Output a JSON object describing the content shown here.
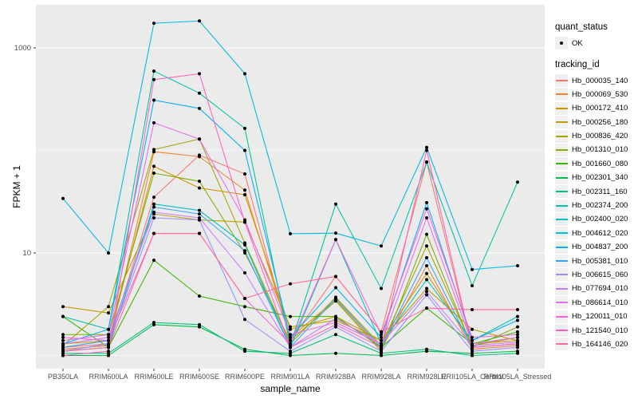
{
  "chart_data": {
    "type": "line",
    "title": "",
    "xlabel": "sample_name",
    "ylabel": "FPKM + 1",
    "y_scale": "log10",
    "ylim": [
      0.75,
      2600
    ],
    "grid": "on",
    "legend_position": "right",
    "point_color": "#000000",
    "categories": [
      "PB350LA",
      "RRIM600LA",
      "RRIM600LE",
      "RRIM600SE",
      "RRIM600PE",
      "RRIM901LA",
      "RRIM928BA",
      "RRIM928LA",
      "RRIM928LE",
      "RRII105LA_Control",
      "RRII105LA_Stressed"
    ],
    "y_ticks": [
      {
        "label": "1000",
        "value": 1000
      },
      {
        "label": "10",
        "value": 10
      }
    ],
    "minor_gridline_values": [
      100,
      1
    ],
    "series": [
      {
        "name": "Hb_000035_140",
        "color": "#F8766D",
        "values": [
          1.2,
          1.3,
          35,
          90,
          59,
          1.4,
          5.9,
          1.7,
          77,
          1.2,
          1.3
        ]
      },
      {
        "name": "Hb_000069_530",
        "color": "#EA8331",
        "values": [
          1.15,
          1.25,
          97,
          87,
          41,
          1.5,
          3.5,
          1.15,
          7.5,
          1.15,
          1.25
        ]
      },
      {
        "name": "Hb_000172_410",
        "color": "#D89000",
        "values": [
          1.3,
          1.4,
          70,
          43,
          37,
          1.8,
          2.4,
          1.4,
          6.3,
          1.3,
          1.4
        ]
      },
      {
        "name": "Hb_000256_180",
        "color": "#C09B00",
        "values": [
          3.0,
          2.6,
          24,
          21,
          20,
          1.9,
          2.2,
          1.4,
          4.5,
          1.8,
          1.4
        ]
      },
      {
        "name": "Hb_000836_420",
        "color": "#A3A500",
        "values": [
          1.25,
          3.0,
          102,
          129,
          12.5,
          1.3,
          3.7,
          1.25,
          11.7,
          1.25,
          1.5
        ]
      },
      {
        "name": "Hb_001310_010",
        "color": "#7CAE00",
        "values": [
          1.6,
          1.6,
          60,
          50,
          10,
          1.4,
          3.4,
          1.1,
          15.2,
          1.2,
          1.9
        ]
      },
      {
        "name": "Hb_001660_080",
        "color": "#39B600",
        "values": [
          2.4,
          1.2,
          8.5,
          3.8,
          3.0,
          2.4,
          2.4,
          1.2,
          2.9,
          1.3,
          1.7
        ]
      },
      {
        "name": "Hb_002301_340",
        "color": "#00BB4E",
        "values": [
          1.0,
          1.0,
          2.0,
          1.9,
          1.15,
          1.0,
          1.05,
          1.0,
          1.1,
          1.05,
          1.1
        ]
      },
      {
        "name": "Hb_002311_160",
        "color": "#00BF7D",
        "values": [
          1.05,
          1.05,
          2.1,
          2.0,
          1.1,
          1.05,
          1.6,
          1.05,
          1.15,
          1.0,
          1.05
        ]
      },
      {
        "name": "Hb_002374_200",
        "color": "#00C1A3",
        "values": [
          2.4,
          1.8,
          594,
          362,
          164,
          1.25,
          30,
          4.5,
          77,
          4.8,
          49
        ]
      },
      {
        "name": "Hb_002400_020",
        "color": "#00BFC4",
        "values": [
          1.1,
          1.2,
          30,
          26,
          12,
          1.2,
          13.5,
          1.3,
          5.5,
          1.4,
          2.4
        ]
      },
      {
        "name": "Hb_004612_020",
        "color": "#00BAE0",
        "values": [
          34,
          10,
          1740,
          1830,
          560,
          15.4,
          15.6,
          11.7,
          107,
          6.9,
          7.5
        ]
      },
      {
        "name": "Hb_004837_200",
        "color": "#00B0F6",
        "values": [
          1.3,
          1.8,
          309,
          257,
          100,
          1.5,
          4.6,
          1.5,
          31,
          1.4,
          2.2
        ]
      },
      {
        "name": "Hb_005381_010",
        "color": "#35A2FF",
        "values": [
          1.2,
          1.4,
          28,
          24,
          10.5,
          1.2,
          3.6,
          1.2,
          9.0,
          1.2,
          1.3
        ]
      },
      {
        "name": "Hb_006615_060",
        "color": "#9590FF",
        "values": [
          1.1,
          1.3,
          22,
          21,
          2.25,
          1.1,
          1.9,
          1.1,
          3.9,
          1.1,
          1.2
        ]
      },
      {
        "name": "Hb_077694_010",
        "color": "#C77CFF",
        "values": [
          1.3,
          1.5,
          25,
          22,
          6.4,
          1.2,
          2.3,
          1.3,
          4.2,
          1.25,
          1.35
        ]
      },
      {
        "name": "Hb_086614_010",
        "color": "#E76BF3",
        "values": [
          1.4,
          1.6,
          186,
          129,
          21,
          1.6,
          2.1,
          1.3,
          22,
          1.3,
          1.5
        ]
      },
      {
        "name": "Hb_120011_010",
        "color": "#FA62DB",
        "values": [
          1.5,
          1.4,
          15.5,
          15.5,
          3.6,
          1.3,
          13.5,
          1.6,
          27,
          1.5,
          1.6
        ]
      },
      {
        "name": "Hb_121540_010",
        "color": "#FF62BC",
        "values": [
          1.0,
          1.1,
          490,
          560,
          20,
          1.2,
          2.0,
          1.2,
          100,
          1.2,
          1.3
        ]
      },
      {
        "name": "Hb_164146_020",
        "color": "#FF6A98",
        "values": [
          1.1,
          1.2,
          15.5,
          15.5,
          3.6,
          5.0,
          5.9,
          1.7,
          2.9,
          2.8,
          2.8
        ]
      }
    ]
  },
  "legend": {
    "quant_status_title": "quant_status",
    "quant_status_items": [
      {
        "label": "OK"
      }
    ],
    "tracking_id_title": "tracking_id"
  },
  "colors": {
    "panel_bg": "#EBEBEB",
    "gridline": "#FFFFFF",
    "tick_label": "#4D4D4D",
    "tick_mark": "#333333",
    "axis_title": "#000000",
    "legend_key_bg": "#F0F0F0",
    "point": "#000000",
    "background": "#FFFFFF"
  }
}
